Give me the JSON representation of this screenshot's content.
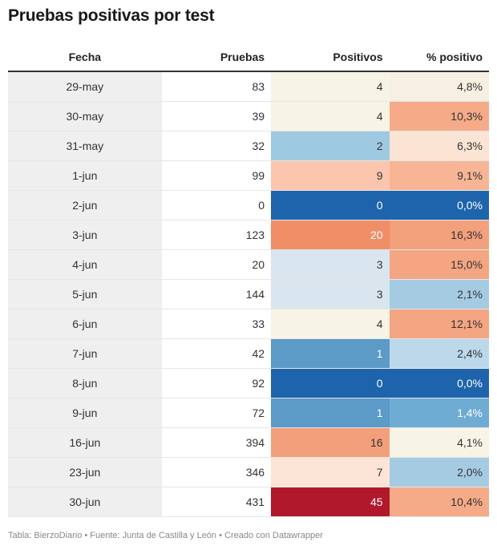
{
  "title": "Pruebas positivas por test",
  "footer": "Tabla: BierzoDiario • Fuente: Junta de Castilla y León • Creado con Datawrapper",
  "chart_data": {
    "type": "table",
    "columns": [
      "Fecha",
      "Pruebas",
      "Positivos",
      "% positivo"
    ],
    "rows": [
      {
        "fecha": "29-may",
        "pruebas": "83",
        "positivos": "4",
        "pct": "4,8%",
        "pos_bg": "#f7f3e5",
        "pos_fg": "#333333",
        "pct_bg": "#f7f0e2",
        "pct_fg": "#333333"
      },
      {
        "fecha": "30-may",
        "pruebas": "39",
        "positivos": "4",
        "pct": "10,3%",
        "pos_bg": "#f7f3e5",
        "pos_fg": "#333333",
        "pct_bg": "#f5ab88",
        "pct_fg": "#333333"
      },
      {
        "fecha": "31-may",
        "pruebas": "32",
        "positivos": "2",
        "pct": "6,3%",
        "pos_bg": "#9ec9e1",
        "pos_fg": "#333333",
        "pct_bg": "#fbe4d4",
        "pct_fg": "#333333"
      },
      {
        "fecha": "1-jun",
        "pruebas": "99",
        "positivos": "9",
        "pct": "9,1%",
        "pos_bg": "#fbc6ad",
        "pos_fg": "#333333",
        "pct_bg": "#f8b596",
        "pct_fg": "#333333"
      },
      {
        "fecha": "2-jun",
        "pruebas": "0",
        "positivos": "0",
        "pct": "0,0%",
        "pos_bg": "#1e64ac",
        "pos_fg": "#ffffff",
        "pct_bg": "#1e64ac",
        "pct_fg": "#ffffff"
      },
      {
        "fecha": "3-jun",
        "pruebas": "123",
        "positivos": "20",
        "pct": "16,3%",
        "pos_bg": "#f08e68",
        "pos_fg": "#ffffff",
        "pct_bg": "#f3a07c",
        "pct_fg": "#333333"
      },
      {
        "fecha": "4-jun",
        "pruebas": "20",
        "positivos": "3",
        "pct": "15,0%",
        "pos_bg": "#d9e6ef",
        "pos_fg": "#333333",
        "pct_bg": "#f4a582",
        "pct_fg": "#333333"
      },
      {
        "fecha": "5-jun",
        "pruebas": "144",
        "positivos": "3",
        "pct": "2,1%",
        "pos_bg": "#d9e6ef",
        "pos_fg": "#333333",
        "pct_bg": "#a5cbe3",
        "pct_fg": "#333333"
      },
      {
        "fecha": "6-jun",
        "pruebas": "33",
        "positivos": "4",
        "pct": "12,1%",
        "pos_bg": "#f7f3e5",
        "pos_fg": "#333333",
        "pct_bg": "#f4a582",
        "pct_fg": "#333333"
      },
      {
        "fecha": "7-jun",
        "pruebas": "42",
        "positivos": "1",
        "pct": "2,4%",
        "pos_bg": "#5c9ac8",
        "pos_fg": "#ffffff",
        "pct_bg": "#bcd8ea",
        "pct_fg": "#333333"
      },
      {
        "fecha": "8-jun",
        "pruebas": "92",
        "positivos": "0",
        "pct": "0,0%",
        "pos_bg": "#1e64ac",
        "pos_fg": "#ffffff",
        "pct_bg": "#1e64ac",
        "pct_fg": "#ffffff"
      },
      {
        "fecha": "9-jun",
        "pruebas": "72",
        "positivos": "1",
        "pct": "1,4%",
        "pos_bg": "#5c9ac8",
        "pos_fg": "#ffffff",
        "pct_bg": "#6eacd4",
        "pct_fg": "#ffffff"
      },
      {
        "fecha": "16-jun",
        "pruebas": "394",
        "positivos": "16",
        "pct": "4,1%",
        "pos_bg": "#f49f7c",
        "pos_fg": "#333333",
        "pct_bg": "#f7f3e5",
        "pct_fg": "#333333"
      },
      {
        "fecha": "23-jun",
        "pruebas": "346",
        "positivos": "7",
        "pct": "2,0%",
        "pos_bg": "#fce5d6",
        "pos_fg": "#333333",
        "pct_bg": "#a5cbe3",
        "pct_fg": "#333333"
      },
      {
        "fecha": "30-jun",
        "pruebas": "431",
        "positivos": "45",
        "pct": "10,4%",
        "pos_bg": "#b2182b",
        "pos_fg": "#ffffff",
        "pct_bg": "#f5ab88",
        "pct_fg": "#333333"
      }
    ]
  }
}
